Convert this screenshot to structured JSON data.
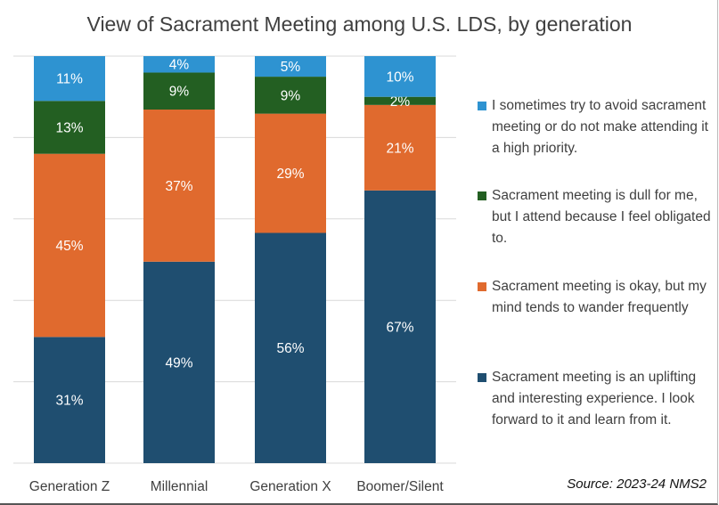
{
  "chart_data": {
    "type": "bar",
    "stacked": true,
    "title": "View of Sacrament Meeting among U.S. LDS, by generation",
    "categories": [
      "Generation Z",
      "Millennial",
      "Generation X",
      "Boomer/Silent"
    ],
    "series": [
      {
        "name": "Sacrament meeting is an uplifting and interesting experience. I look forward to it and learn from it.",
        "color": "#1f4e70",
        "values": [
          31,
          49,
          56,
          67
        ]
      },
      {
        "name": "Sacrament meeting is okay, but my mind tends to wander frequently",
        "color": "#e06a2e",
        "values": [
          45,
          37,
          29,
          21
        ]
      },
      {
        "name": "Sacrament meeting is dull for me, but I attend because I feel obligated to.",
        "color": "#235f22",
        "values": [
          13,
          9,
          9,
          2
        ]
      },
      {
        "name": "I sometimes try to avoid sacrament meeting or do not make attending it a high priority.",
        "color": "#2e93d1",
        "values": [
          11,
          4,
          5,
          10
        ]
      }
    ],
    "value_suffix": "%",
    "ylim": [
      0,
      100
    ],
    "grid": true,
    "legend": "right",
    "source": "Source: 2023-24 NMS2"
  }
}
